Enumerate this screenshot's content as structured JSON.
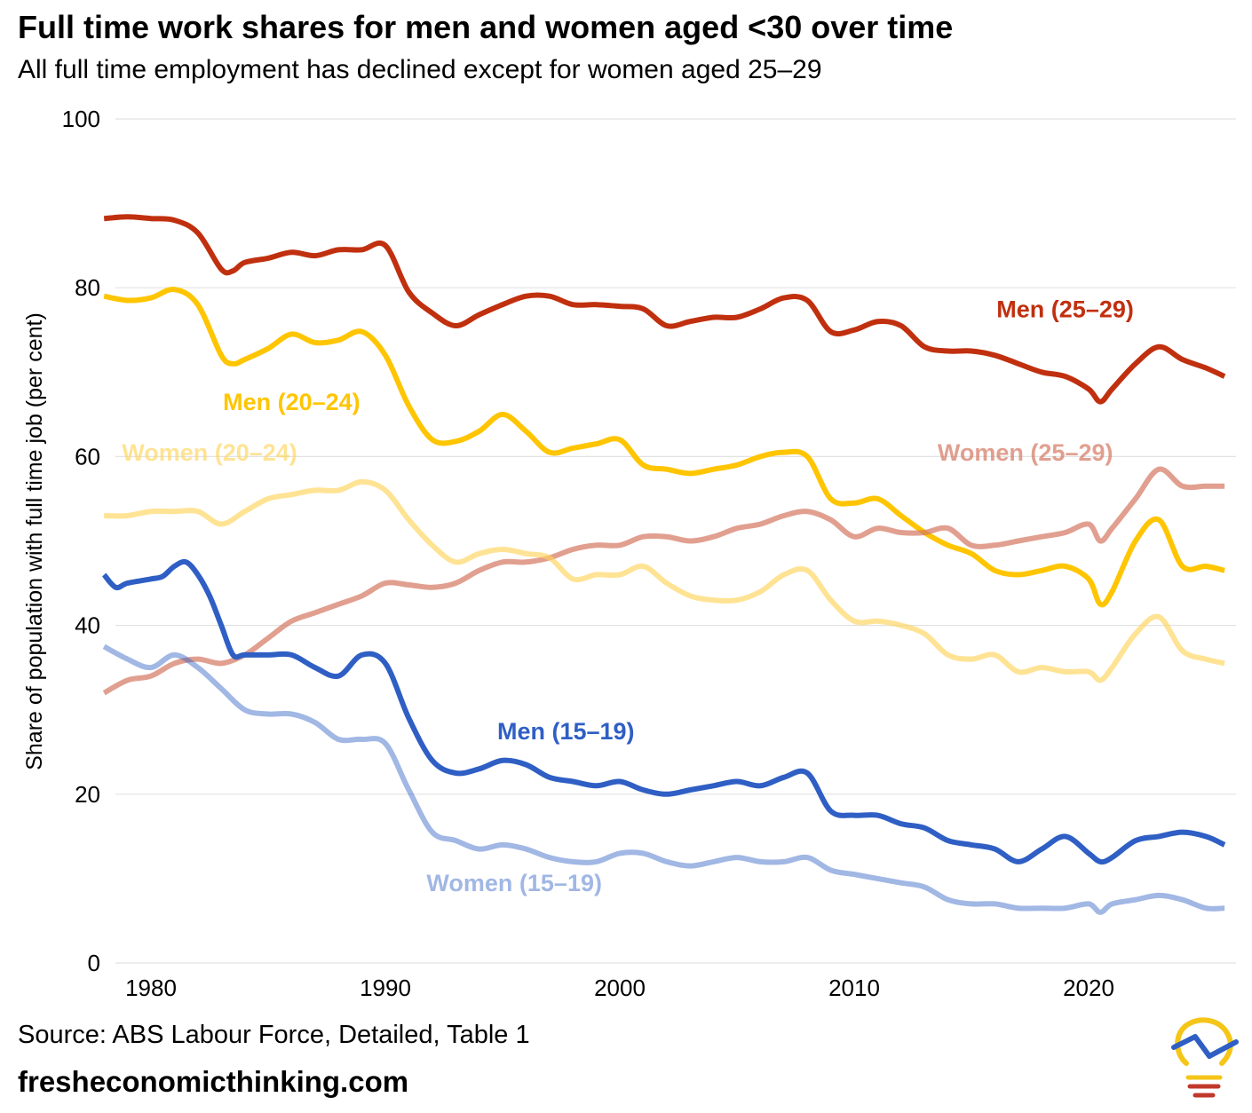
{
  "header": {
    "title": "Full time work shares for men and women aged <30 over time",
    "subtitle": "All full time employment has declined except for women aged 25–29"
  },
  "footer": {
    "source": "Source: ABS Labour Force, Detailed, Table 1",
    "website": "fresheconomicthinking.com"
  },
  "logo": {
    "icon": "lightbulb-logo-icon",
    "colors": [
      "#f5c518",
      "#2f5fc4",
      "#c0392b"
    ]
  },
  "chart_data": {
    "type": "line",
    "title": "Full time work shares for men and women aged <30 over time",
    "subtitle": "All full time employment has declined except for women aged 25–29",
    "xlabel": "",
    "ylabel": "Share of population with full time job (per cent)",
    "xlim": [
      1977.5,
      2026.5
    ],
    "ylim": [
      0,
      100
    ],
    "xticks": [
      1980,
      1990,
      2000,
      2010,
      2020
    ],
    "yticks": [
      0,
      20,
      40,
      60,
      80,
      100
    ],
    "grid": true,
    "legend": "direct labels on lines",
    "series": [
      {
        "name": "Men (25–29)",
        "color": "#c0300f",
        "opacity": 1,
        "x": [
          1978,
          1979,
          1980,
          1981,
          1982,
          1983,
          1983.5,
          1984,
          1985,
          1986,
          1987,
          1988,
          1989,
          1990,
          1991,
          1992,
          1993,
          1994,
          1995,
          1996,
          1997,
          1998,
          1999,
          2000,
          2001,
          2002,
          2003,
          2004,
          2005,
          2006,
          2007,
          2008,
          2009,
          2010,
          2011,
          2012,
          2013,
          2014,
          2015,
          2016,
          2017,
          2018,
          2019,
          2020,
          2020.5,
          2021,
          2022,
          2023,
          2024,
          2025,
          2025.8
        ],
        "y": [
          88.2,
          88.4,
          88.2,
          88.0,
          86.5,
          82.2,
          82.0,
          83.0,
          83.5,
          84.2,
          83.8,
          84.5,
          84.5,
          85.0,
          79.5,
          77.0,
          75.5,
          76.8,
          78.0,
          79.0,
          79.0,
          78.0,
          78.0,
          77.8,
          77.5,
          75.5,
          76.0,
          76.5,
          76.5,
          77.5,
          78.8,
          78.5,
          74.8,
          75.0,
          76.0,
          75.5,
          73.0,
          72.5,
          72.5,
          72.0,
          71.0,
          70.0,
          69.5,
          68.0,
          66.5,
          68.0,
          71.0,
          73.0,
          71.5,
          70.5,
          69.5
        ]
      },
      {
        "name": "Men (20–24)",
        "color": "#ffc500",
        "opacity": 1,
        "x": [
          1978,
          1979,
          1980,
          1981,
          1982,
          1983,
          1983.5,
          1984,
          1985,
          1986,
          1987,
          1988,
          1989,
          1990,
          1991,
          1992,
          1993,
          1994,
          1995,
          1996,
          1997,
          1998,
          1999,
          2000,
          2001,
          2002,
          2003,
          2004,
          2005,
          2006,
          2007,
          2008,
          2009,
          2010,
          2011,
          2012,
          2013,
          2014,
          2015,
          2016,
          2017,
          2018,
          2019,
          2020,
          2020.5,
          2021,
          2022,
          2023,
          2024,
          2025,
          2025.8
        ],
        "y": [
          79.0,
          78.5,
          78.8,
          79.8,
          78.0,
          72.0,
          71.0,
          71.5,
          72.8,
          74.5,
          73.5,
          73.8,
          74.8,
          72.0,
          66.0,
          62.0,
          61.8,
          63.0,
          65.0,
          63.0,
          60.5,
          61.0,
          61.5,
          62.0,
          59.0,
          58.5,
          58.0,
          58.5,
          59.0,
          60.0,
          60.5,
          60.0,
          55.0,
          54.5,
          55.0,
          53.0,
          51.0,
          49.5,
          48.5,
          46.5,
          46.0,
          46.5,
          47.0,
          45.5,
          42.5,
          44.0,
          50.0,
          52.5,
          47.0,
          47.0,
          46.5
        ]
      },
      {
        "name": "Women (25–29)",
        "color": "#d4765f",
        "opacity": 0.7,
        "x": [
          1978,
          1979,
          1980,
          1981,
          1982,
          1983,
          1984,
          1985,
          1986,
          1987,
          1988,
          1989,
          1990,
          1991,
          1992,
          1993,
          1994,
          1995,
          1996,
          1997,
          1998,
          1999,
          2000,
          2001,
          2002,
          2003,
          2004,
          2005,
          2006,
          2007,
          2008,
          2009,
          2010,
          2011,
          2012,
          2013,
          2014,
          2015,
          2016,
          2017,
          2018,
          2019,
          2020,
          2020.5,
          2021,
          2022,
          2023,
          2024,
          2025,
          2025.8
        ],
        "y": [
          32.0,
          33.5,
          34.0,
          35.5,
          36.0,
          35.5,
          36.5,
          38.5,
          40.5,
          41.5,
          42.5,
          43.5,
          45.0,
          44.8,
          44.5,
          45.0,
          46.5,
          47.5,
          47.5,
          48.0,
          49.0,
          49.5,
          49.5,
          50.5,
          50.5,
          50.0,
          50.5,
          51.5,
          52.0,
          53.0,
          53.5,
          52.5,
          50.5,
          51.5,
          51.0,
          51.0,
          51.5,
          49.5,
          49.5,
          50.0,
          50.5,
          51.0,
          52.0,
          50.0,
          51.5,
          55.0,
          58.5,
          56.5,
          56.5,
          56.5
        ]
      },
      {
        "name": "Women (20–24)",
        "color": "#ffd45a",
        "opacity": 0.65,
        "x": [
          1978,
          1979,
          1980,
          1981,
          1982,
          1983,
          1984,
          1985,
          1986,
          1987,
          1988,
          1989,
          1990,
          1991,
          1992,
          1993,
          1994,
          1995,
          1996,
          1997,
          1998,
          1999,
          2000,
          2001,
          2002,
          2003,
          2004,
          2005,
          2006,
          2007,
          2008,
          2009,
          2010,
          2011,
          2012,
          2013,
          2014,
          2015,
          2016,
          2017,
          2018,
          2019,
          2020,
          2020.5,
          2021,
          2022,
          2023,
          2024,
          2025,
          2025.8
        ],
        "y": [
          53.0,
          53.0,
          53.5,
          53.5,
          53.5,
          52.0,
          53.5,
          55.0,
          55.5,
          56.0,
          56.0,
          57.0,
          56.0,
          52.5,
          49.5,
          47.5,
          48.5,
          49.0,
          48.5,
          48.0,
          45.5,
          46.0,
          46.0,
          47.0,
          45.0,
          43.5,
          43.0,
          43.0,
          44.0,
          46.0,
          46.5,
          43.0,
          40.5,
          40.5,
          40.0,
          39.0,
          36.5,
          36.0,
          36.5,
          34.5,
          35.0,
          34.5,
          34.5,
          33.5,
          35.0,
          39.0,
          41.0,
          37.0,
          36.0,
          35.5
        ]
      },
      {
        "name": "Men (15–19)",
        "color": "#2f5fc4",
        "opacity": 1,
        "x": [
          1978,
          1978.5,
          1979,
          1980,
          1980.5,
          1981,
          1981.5,
          1982,
          1982.5,
          1983,
          1983.5,
          1984,
          1985,
          1986,
          1987,
          1988,
          1989,
          1990,
          1991,
          1992,
          1993,
          1994,
          1995,
          1996,
          1997,
          1998,
          1999,
          2000,
          2001,
          2002,
          2003,
          2004,
          2005,
          2006,
          2007,
          2008,
          2009,
          2010,
          2011,
          2012,
          2013,
          2014,
          2015,
          2016,
          2017,
          2018,
          2019,
          2020,
          2020.5,
          2021,
          2022,
          2023,
          2024,
          2025,
          2025.8
        ],
        "y": [
          46.0,
          44.5,
          45.0,
          45.5,
          45.8,
          47.0,
          47.5,
          46.0,
          43.5,
          40.0,
          36.5,
          36.5,
          36.5,
          36.5,
          35.0,
          34.0,
          36.5,
          35.5,
          29.0,
          24.0,
          22.5,
          23.0,
          24.0,
          23.5,
          22.0,
          21.5,
          21.0,
          21.5,
          20.5,
          20.0,
          20.5,
          21.0,
          21.5,
          21.0,
          22.0,
          22.5,
          18.0,
          17.5,
          17.5,
          16.5,
          16.0,
          14.5,
          14.0,
          13.5,
          12.0,
          13.5,
          15.0,
          13.0,
          12.0,
          12.5,
          14.5,
          15.0,
          15.5,
          15.0,
          14.0
        ]
      },
      {
        "name": "Women (15–19)",
        "color": "#2f5fc4",
        "opacity": 0.45,
        "x": [
          1978,
          1979,
          1980,
          1981,
          1982,
          1983,
          1984,
          1985,
          1986,
          1987,
          1988,
          1989,
          1990,
          1991,
          1992,
          1993,
          1994,
          1995,
          1996,
          1997,
          1998,
          1999,
          2000,
          2001,
          2002,
          2003,
          2004,
          2005,
          2006,
          2007,
          2008,
          2009,
          2010,
          2011,
          2012,
          2013,
          2014,
          2015,
          2016,
          2017,
          2018,
          2019,
          2020,
          2020.5,
          2021,
          2022,
          2023,
          2024,
          2025,
          2025.8
        ],
        "y": [
          37.5,
          36.0,
          35.0,
          36.5,
          35.0,
          32.5,
          30.0,
          29.5,
          29.5,
          28.5,
          26.5,
          26.5,
          26.0,
          20.5,
          15.5,
          14.5,
          13.5,
          14.0,
          13.5,
          12.5,
          12.0,
          12.0,
          13.0,
          13.0,
          12.0,
          11.5,
          12.0,
          12.5,
          12.0,
          12.0,
          12.5,
          11.0,
          10.5,
          10.0,
          9.5,
          9.0,
          7.5,
          7.0,
          7.0,
          6.5,
          6.5,
          6.5,
          7.0,
          6.0,
          7.0,
          7.5,
          8.0,
          7.5,
          6.5,
          6.5
        ]
      }
    ],
    "labels": [
      {
        "text": "Men (25–29)",
        "series": "Men (25–29)",
        "x": 2019,
        "y": 76.5
      },
      {
        "text": "Men (20–24)",
        "series": "Men (20–24)",
        "x": 1986,
        "y": 65.5
      },
      {
        "text": "Women (25–29)",
        "series": "Women (25–29)",
        "x": 2017.3,
        "y": 59.5
      },
      {
        "text": "Women (20–24)",
        "series": "Women (20–24)",
        "x": 1982.5,
        "y": 59.5
      },
      {
        "text": "Men (15–19)",
        "series": "Men (15–19)",
        "x": 1997.7,
        "y": 26.5
      },
      {
        "text": "Women (15–19)",
        "series": "Women (15–19)",
        "x": 1995.5,
        "y": 8.5
      }
    ]
  }
}
